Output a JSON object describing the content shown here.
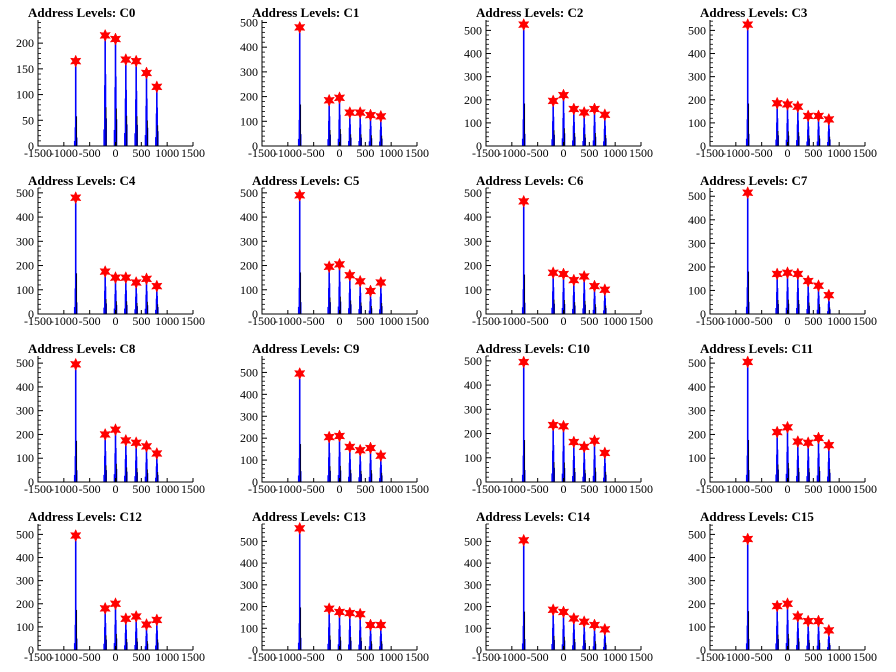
{
  "chart_data": [
    {
      "type": "bar",
      "title": "Address Levels: C0",
      "xlim": [
        -1500,
        1500
      ],
      "ylim": [
        0,
        245
      ],
      "yticks": [
        0,
        50,
        100,
        150,
        200
      ],
      "xticks": [
        -1500,
        -1000,
        -500,
        0,
        500,
        1000,
        1500
      ],
      "peaks": [
        {
          "x": -770,
          "y": 165
        },
        {
          "x": -200,
          "y": 215
        },
        {
          "x": 0,
          "y": 208
        },
        {
          "x": 200,
          "y": 168
        },
        {
          "x": 400,
          "y": 165
        },
        {
          "x": 600,
          "y": 142
        },
        {
          "x": 800,
          "y": 115
        }
      ]
    },
    {
      "type": "bar",
      "title": "Address Levels: C1",
      "xlim": [
        -1500,
        1500
      ],
      "ylim": [
        0,
        510
      ],
      "yticks": [
        0,
        100,
        200,
        300,
        400,
        500
      ],
      "xticks": [
        -1500,
        -1000,
        -500,
        0,
        500,
        1000,
        1500
      ],
      "peaks": [
        {
          "x": -770,
          "y": 480
        },
        {
          "x": -200,
          "y": 185
        },
        {
          "x": 0,
          "y": 195
        },
        {
          "x": 200,
          "y": 135
        },
        {
          "x": 400,
          "y": 135
        },
        {
          "x": 600,
          "y": 125
        },
        {
          "x": 800,
          "y": 120
        }
      ]
    },
    {
      "type": "bar",
      "title": "Address Levels: C2",
      "xlim": [
        -1500,
        1500
      ],
      "ylim": [
        0,
        545
      ],
      "yticks": [
        0,
        100,
        200,
        300,
        400,
        500
      ],
      "xticks": [
        -1500,
        -1000,
        -500,
        0,
        500,
        1000,
        1500
      ],
      "peaks": [
        {
          "x": -770,
          "y": 525
        },
        {
          "x": -200,
          "y": 195
        },
        {
          "x": 0,
          "y": 220
        },
        {
          "x": 200,
          "y": 160
        },
        {
          "x": 400,
          "y": 145
        },
        {
          "x": 600,
          "y": 160
        },
        {
          "x": 800,
          "y": 135
        }
      ]
    },
    {
      "type": "bar",
      "title": "Address Levels: C3",
      "xlim": [
        -1500,
        1500
      ],
      "ylim": [
        0,
        545
      ],
      "yticks": [
        0,
        100,
        200,
        300,
        400,
        500
      ],
      "xticks": [
        -1500,
        -1000,
        -500,
        0,
        500,
        1000,
        1500
      ],
      "peaks": [
        {
          "x": -770,
          "y": 525
        },
        {
          "x": -200,
          "y": 185
        },
        {
          "x": 0,
          "y": 180
        },
        {
          "x": 200,
          "y": 170
        },
        {
          "x": 400,
          "y": 130
        },
        {
          "x": 600,
          "y": 130
        },
        {
          "x": 800,
          "y": 115
        }
      ]
    },
    {
      "type": "bar",
      "title": "Address Levels: C4",
      "xlim": [
        -1500,
        1500
      ],
      "ylim": [
        0,
        520
      ],
      "yticks": [
        0,
        100,
        200,
        300,
        400,
        500
      ],
      "xticks": [
        -1500,
        -1000,
        -500,
        0,
        500,
        1000,
        1500
      ],
      "peaks": [
        {
          "x": -770,
          "y": 480
        },
        {
          "x": -200,
          "y": 175
        },
        {
          "x": 0,
          "y": 150
        },
        {
          "x": 200,
          "y": 150
        },
        {
          "x": 400,
          "y": 130
        },
        {
          "x": 600,
          "y": 145
        },
        {
          "x": 800,
          "y": 115
        }
      ]
    },
    {
      "type": "bar",
      "title": "Address Levels: C5",
      "xlim": [
        -1500,
        1500
      ],
      "ylim": [
        0,
        520
      ],
      "yticks": [
        0,
        100,
        200,
        300,
        400,
        500
      ],
      "xticks": [
        -1500,
        -1000,
        -500,
        0,
        500,
        1000,
        1500
      ],
      "peaks": [
        {
          "x": -770,
          "y": 490
        },
        {
          "x": -200,
          "y": 195
        },
        {
          "x": 0,
          "y": 205
        },
        {
          "x": 200,
          "y": 160
        },
        {
          "x": 400,
          "y": 135
        },
        {
          "x": 600,
          "y": 95
        },
        {
          "x": 800,
          "y": 130
        }
      ]
    },
    {
      "type": "bar",
      "title": "Address Levels: C6",
      "xlim": [
        -1500,
        1500
      ],
      "ylim": [
        0,
        520
      ],
      "yticks": [
        0,
        100,
        200,
        300,
        400,
        500
      ],
      "xticks": [
        -1500,
        -1000,
        -500,
        0,
        500,
        1000,
        1500
      ],
      "peaks": [
        {
          "x": -770,
          "y": 465
        },
        {
          "x": -200,
          "y": 170
        },
        {
          "x": 0,
          "y": 165
        },
        {
          "x": 200,
          "y": 140
        },
        {
          "x": 400,
          "y": 155
        },
        {
          "x": 600,
          "y": 115
        },
        {
          "x": 800,
          "y": 100
        }
      ]
    },
    {
      "type": "bar",
      "title": "Address Levels: C7",
      "xlim": [
        -1500,
        1500
      ],
      "ylim": [
        0,
        535
      ],
      "yticks": [
        0,
        100,
        200,
        300,
        400,
        500
      ],
      "xticks": [
        -1500,
        -1000,
        -500,
        0,
        500,
        1000,
        1500
      ],
      "peaks": [
        {
          "x": -770,
          "y": 515
        },
        {
          "x": -200,
          "y": 170
        },
        {
          "x": 0,
          "y": 175
        },
        {
          "x": 200,
          "y": 170
        },
        {
          "x": 400,
          "y": 140
        },
        {
          "x": 600,
          "y": 120
        },
        {
          "x": 800,
          "y": 80
        }
      ]
    },
    {
      "type": "bar",
      "title": "Address Levels: C8",
      "xlim": [
        -1500,
        1500
      ],
      "ylim": [
        0,
        530
      ],
      "yticks": [
        0,
        100,
        200,
        300,
        400,
        500
      ],
      "xticks": [
        -1500,
        -1000,
        -500,
        0,
        500,
        1000,
        1500
      ],
      "peaks": [
        {
          "x": -770,
          "y": 495
        },
        {
          "x": -200,
          "y": 200
        },
        {
          "x": 0,
          "y": 220
        },
        {
          "x": 200,
          "y": 175
        },
        {
          "x": 400,
          "y": 165
        },
        {
          "x": 600,
          "y": 150
        },
        {
          "x": 800,
          "y": 120
        }
      ]
    },
    {
      "type": "bar",
      "title": "Address Levels: C9",
      "xlim": [
        -1500,
        1500
      ],
      "ylim": [
        0,
        575
      ],
      "yticks": [
        0,
        100,
        200,
        300,
        400,
        500
      ],
      "xticks": [
        -1500,
        -1000,
        -500,
        0,
        500,
        1000,
        1500
      ],
      "peaks": [
        {
          "x": -770,
          "y": 495
        },
        {
          "x": -200,
          "y": 205
        },
        {
          "x": 0,
          "y": 210
        },
        {
          "x": 200,
          "y": 160
        },
        {
          "x": 400,
          "y": 145
        },
        {
          "x": 600,
          "y": 155
        },
        {
          "x": 800,
          "y": 120
        }
      ]
    },
    {
      "type": "bar",
      "title": "Address Levels: C10",
      "xlim": [
        -1500,
        1500
      ],
      "ylim": [
        0,
        520
      ],
      "yticks": [
        0,
        100,
        200,
        300,
        400,
        500
      ],
      "xticks": [
        -1500,
        -1000,
        -500,
        0,
        500,
        1000,
        1500
      ],
      "peaks": [
        {
          "x": -770,
          "y": 495
        },
        {
          "x": -200,
          "y": 235
        },
        {
          "x": 0,
          "y": 230
        },
        {
          "x": 200,
          "y": 165
        },
        {
          "x": 400,
          "y": 145
        },
        {
          "x": 600,
          "y": 170
        },
        {
          "x": 800,
          "y": 120
        }
      ]
    },
    {
      "type": "bar",
      "title": "Address Levels: C11",
      "xlim": [
        -1500,
        1500
      ],
      "ylim": [
        0,
        530
      ],
      "yticks": [
        0,
        100,
        200,
        300,
        400,
        500
      ],
      "xticks": [
        -1500,
        -1000,
        -500,
        0,
        500,
        1000,
        1500
      ],
      "peaks": [
        {
          "x": -770,
          "y": 505
        },
        {
          "x": -200,
          "y": 210
        },
        {
          "x": 0,
          "y": 230
        },
        {
          "x": 200,
          "y": 170
        },
        {
          "x": 400,
          "y": 165
        },
        {
          "x": 600,
          "y": 185
        },
        {
          "x": 800,
          "y": 155
        }
      ]
    },
    {
      "type": "bar",
      "title": "Address Levels: C12",
      "xlim": [
        -1500,
        1500
      ],
      "ylim": [
        0,
        545
      ],
      "yticks": [
        0,
        100,
        200,
        300,
        400,
        500
      ],
      "xticks": [
        -1500,
        -1000,
        -500,
        0,
        500,
        1000,
        1500
      ],
      "peaks": [
        {
          "x": -770,
          "y": 495
        },
        {
          "x": -200,
          "y": 180
        },
        {
          "x": 0,
          "y": 200
        },
        {
          "x": 200,
          "y": 135
        },
        {
          "x": 400,
          "y": 145
        },
        {
          "x": 600,
          "y": 110
        },
        {
          "x": 800,
          "y": 130
        }
      ]
    },
    {
      "type": "bar",
      "title": "Address Levels: C13",
      "xlim": [
        -1500,
        1500
      ],
      "ylim": [
        0,
        580
      ],
      "yticks": [
        0,
        100,
        200,
        300,
        400,
        500
      ],
      "xticks": [
        -1500,
        -1000,
        -500,
        0,
        500,
        1000,
        1500
      ],
      "peaks": [
        {
          "x": -770,
          "y": 560
        },
        {
          "x": -200,
          "y": 190
        },
        {
          "x": 0,
          "y": 175
        },
        {
          "x": 200,
          "y": 170
        },
        {
          "x": 400,
          "y": 165
        },
        {
          "x": 600,
          "y": 115
        },
        {
          "x": 800,
          "y": 115
        }
      ]
    },
    {
      "type": "bar",
      "title": "Address Levels: C14",
      "xlim": [
        -1500,
        1500
      ],
      "ylim": [
        0,
        580
      ],
      "yticks": [
        0,
        100,
        200,
        300,
        400,
        500
      ],
      "xticks": [
        -1500,
        -1000,
        -500,
        0,
        500,
        1000,
        1500
      ],
      "peaks": [
        {
          "x": -770,
          "y": 505
        },
        {
          "x": -200,
          "y": 185
        },
        {
          "x": 0,
          "y": 175
        },
        {
          "x": 200,
          "y": 145
        },
        {
          "x": 400,
          "y": 130
        },
        {
          "x": 600,
          "y": 115
        },
        {
          "x": 800,
          "y": 95
        }
      ]
    },
    {
      "type": "bar",
      "title": "Address Levels: C15",
      "xlim": [
        -1500,
        1500
      ],
      "ylim": [
        0,
        545
      ],
      "yticks": [
        0,
        100,
        200,
        300,
        400,
        500
      ],
      "xticks": [
        -1500,
        -1000,
        -500,
        0,
        500,
        1000,
        1500
      ],
      "peaks": [
        {
          "x": -770,
          "y": 480
        },
        {
          "x": -200,
          "y": 190
        },
        {
          "x": 0,
          "y": 200
        },
        {
          "x": 200,
          "y": 145
        },
        {
          "x": 400,
          "y": 125
        },
        {
          "x": 600,
          "y": 125
        },
        {
          "x": 800,
          "y": 85
        }
      ]
    }
  ],
  "colors": {
    "histogram": "#0000ff",
    "marker": "#ff0000",
    "axis": "#000000"
  }
}
